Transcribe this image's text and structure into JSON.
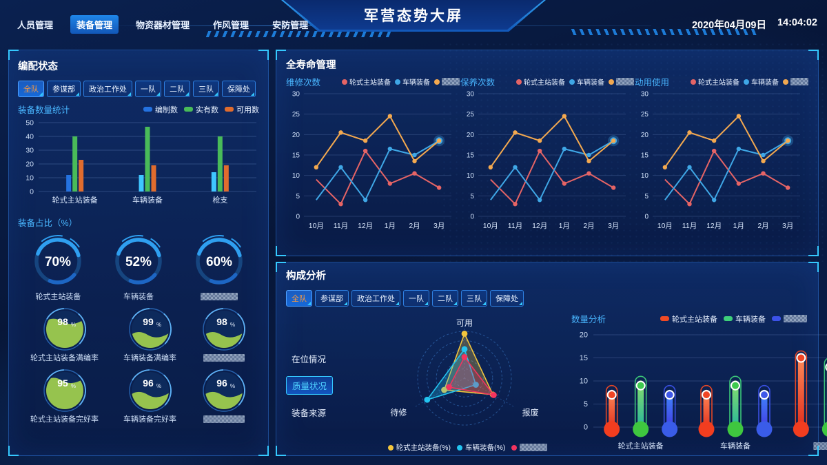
{
  "header": {
    "nav": [
      {
        "label": "人员管理",
        "active": false
      },
      {
        "label": "装备管理",
        "active": true
      },
      {
        "label": "物资器材管理",
        "active": false
      },
      {
        "label": "作风管理",
        "active": false
      },
      {
        "label": "安防管理",
        "active": false
      }
    ],
    "title": "军营态势大屏",
    "date": "2020年04月09日",
    "time": "14:04:02"
  },
  "filters": {
    "items": [
      "全队",
      "参谋部",
      "政治工作处",
      "一队",
      "二队",
      "三队",
      "保障处"
    ],
    "active": "全队"
  },
  "left_panel": {
    "title": "编配状态",
    "bar_section": {
      "label": "装备数量统计",
      "legend": [
        {
          "name": "编制数",
          "color": "#2472e0",
          "censored": false
        },
        {
          "name": "实有数",
          "color": "#49bb59",
          "censored": false
        },
        {
          "name": "可用数",
          "color": "#e06c2e",
          "censored": false
        }
      ]
    },
    "donut_section": {
      "label": "装备占比（%）",
      "items": [
        {
          "value": 70,
          "label": "轮式主站装备",
          "censored": false
        },
        {
          "value": 52,
          "label": "车辆装备",
          "censored": false
        },
        {
          "value": 60,
          "label": null,
          "censored": true
        }
      ]
    },
    "gauges": [
      {
        "value": 98,
        "label": "轮式主站装备满编率",
        "censored": false,
        "fill": 0.72
      },
      {
        "value": 99,
        "label": "车辆装备满编率",
        "censored": false,
        "fill": 0.36
      },
      {
        "value": 98,
        "label": null,
        "censored": true,
        "fill": 0.36
      },
      {
        "value": 95,
        "label": "轮式主站装备完好率",
        "censored": false,
        "fill": 0.78
      },
      {
        "value": 96,
        "label": "车辆装备完好率",
        "censored": false,
        "fill": 0.4
      },
      {
        "value": 96,
        "label": null,
        "censored": true,
        "fill": 0.4
      }
    ]
  },
  "lifecycle_panel": {
    "title": "全寿命管理",
    "charts": [
      {
        "label": "维修次数"
      },
      {
        "label": "保养次数"
      },
      {
        "label": "动用使用"
      }
    ],
    "legend": [
      {
        "name": "轮式主站装备",
        "color": "#e66465",
        "censored": false
      },
      {
        "name": "车辆装备",
        "color": "#3fa7e6",
        "censored": false
      },
      {
        "name": null,
        "color": "#f4a94f",
        "censored": true
      }
    ]
  },
  "composition_panel": {
    "title": "构成分析",
    "radar": {
      "menu": [
        {
          "label": "在位情况",
          "active": false
        },
        {
          "label": "质量状况",
          "active": true
        },
        {
          "label": "装备来源",
          "active": false
        }
      ],
      "legend": [
        {
          "name": "轮式主站装备(%)",
          "color": "#f2c53d",
          "censored": false
        },
        {
          "name": "车辆装备(%)",
          "color": "#23c4f0",
          "censored": false
        },
        {
          "name": null,
          "color": "#f2345f",
          "censored": true
        }
      ]
    },
    "quantity": {
      "label": "数量分析",
      "legend": [
        {
          "name": "轮式主站装备",
          "color": "#f04a24",
          "censored": false
        },
        {
          "name": "车辆装备",
          "color": "#3ecf7a",
          "censored": false
        },
        {
          "name": null,
          "color": "#3c52e8",
          "censored": true
        }
      ]
    }
  },
  "chart_data": [
    {
      "id": "equipment-count",
      "type": "bar",
      "title": "装备数量统计",
      "categories": [
        "轮式主站装备",
        "车辆装备",
        "枪支"
      ],
      "series": [
        {
          "name": "编制数",
          "color": "#2472e0",
          "point_colors": [
            "#2472e0",
            "#3fc6ff",
            "#3fc6ff"
          ],
          "values": [
            12,
            12,
            14
          ]
        },
        {
          "name": "实有数",
          "color": "#49bb59",
          "values": [
            40,
            47,
            40
          ]
        },
        {
          "name": "可用数",
          "color": "#e06c2e",
          "values": [
            23,
            19,
            19
          ]
        }
      ],
      "ylim": [
        0,
        50
      ],
      "yticks": [
        0,
        10,
        20,
        30,
        40,
        50
      ]
    },
    {
      "id": "equipment-ratio",
      "type": "pie",
      "title": "装备占比（%）",
      "labels": [
        "轮式主站装备",
        "车辆装备",
        null
      ],
      "values": [
        70,
        52,
        60
      ]
    },
    {
      "id": "rate-gauges",
      "type": "gauge",
      "labels": [
        "轮式主站装备满编率",
        "车辆装备满编率",
        null,
        "轮式主站装备完好率",
        "车辆装备完好率",
        null
      ],
      "values": [
        98,
        99,
        98,
        95,
        96,
        96
      ]
    },
    {
      "id": "lifecycle-lines",
      "type": "line",
      "titles": [
        "维修次数",
        "保养次数",
        "动用使用"
      ],
      "note": "identical data shown on all three charts",
      "x": [
        "10月",
        "11月",
        "12月",
        "1月",
        "2月",
        "3月"
      ],
      "series": [
        {
          "name": "轮式主站装备",
          "color": "#e66465",
          "values": [
            9,
            3,
            16,
            8,
            10.5,
            7
          ],
          "first_marker": false
        },
        {
          "name": "车辆装备",
          "color": "#3fa7e6",
          "values": [
            4,
            12,
            4,
            16.5,
            15,
            18.5
          ],
          "first_marker": false,
          "end_glow": true
        },
        {
          "name": null,
          "censored": true,
          "color": "#f4a94f",
          "values": [
            12,
            20.5,
            18.5,
            24.5,
            13.5,
            18.5
          ]
        }
      ],
      "ylim": [
        0,
        30
      ],
      "yticks": [
        0,
        5,
        10,
        15,
        20,
        25,
        30
      ]
    },
    {
      "id": "composition-radar",
      "type": "radar",
      "max": 100,
      "axes": [
        "可用",
        "报废",
        "待修"
      ],
      "series": [
        {
          "name": "轮式主站装备(%)",
          "color": "#f2c53d",
          "values": [
            95,
            70,
            50
          ]
        },
        {
          "name": "车辆装备(%)",
          "color": "#23c4f0",
          "values": [
            62,
            28,
            92
          ]
        },
        {
          "name": null,
          "censored": true,
          "color": "#f2345f",
          "values": [
            45,
            72,
            38
          ]
        }
      ]
    },
    {
      "id": "quantity-analysis",
      "type": "bar",
      "title": "数量分析",
      "variant": "thermometer",
      "categories": [
        "轮式主站装备",
        "车辆装备",
        null
      ],
      "series": [
        {
          "name": "轮式主站装备",
          "color": "#f04a24",
          "bulb": "#f23d1f",
          "dot": "#f04524",
          "grad": [
            "#ff8d5a",
            "#e02818"
          ],
          "tube": [
            9,
            9,
            16.5
          ],
          "dot_values": [
            7,
            7,
            15
          ]
        },
        {
          "name": "车辆装备",
          "color": "#3ecf7a",
          "bulb": "#3fc73f",
          "dot": "#3fca4f",
          "grad": [
            "#8ae06a",
            "#1db2a0"
          ],
          "tube": [
            11,
            11,
            15
          ],
          "dot_values": [
            9,
            9,
            13
          ]
        },
        {
          "name": null,
          "censored": true,
          "color": "#3c52e8",
          "bulb": "#3a5ce8",
          "dot": "#3f58e8",
          "grad": [
            "#3f8dff",
            "#4433e0"
          ],
          "tube": [
            9,
            9,
            9
          ],
          "dot_values": [
            7,
            7,
            7
          ]
        }
      ],
      "ylim": [
        0,
        20
      ],
      "yticks": [
        0,
        5,
        10,
        15,
        20
      ]
    }
  ]
}
